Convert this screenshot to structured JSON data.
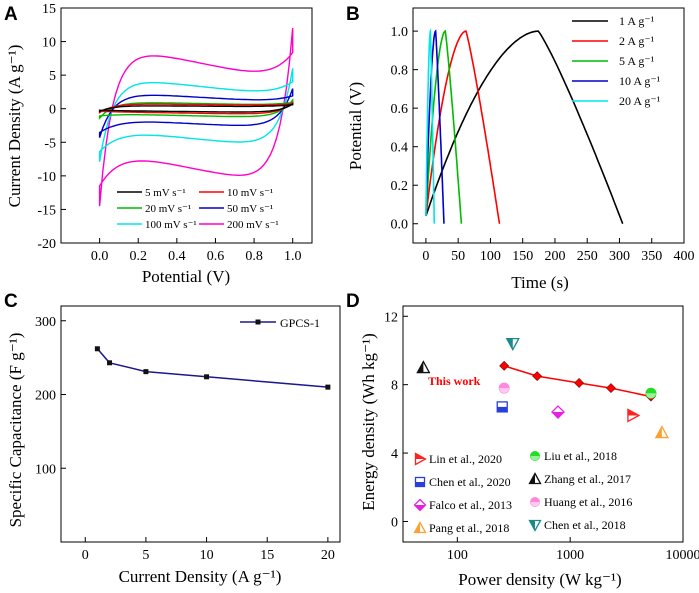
{
  "panels": {
    "A": {
      "letter": "A",
      "chart_data": {
        "type": "line",
        "title": "",
        "xlabel": "Potential (V)",
        "ylabel": "Current Density (A g⁻¹)",
        "xlim": [
          -0.2,
          1.1
        ],
        "ylim": [
          -20,
          15
        ],
        "xticks": [
          "0.0",
          "0.2",
          "0.4",
          "0.6",
          "0.8",
          "1.0"
        ],
        "xtick_values": [
          0.0,
          0.2,
          0.4,
          0.6,
          0.8,
          1.0
        ],
        "yticks": [
          "-20",
          "-15",
          "-10",
          "-5",
          "0",
          "5",
          "10",
          "15"
        ],
        "ytick_values": [
          -20,
          -15,
          -10,
          -5,
          0,
          5,
          10,
          15
        ],
        "series": [
          {
            "name": "5 mV s⁻¹",
            "color": "#000000",
            "start": -0.4,
            "end": 0.7,
            "top": 0.5,
            "bottom": -0.6
          },
          {
            "name": "10 mV s⁻¹",
            "color": "#ff0000",
            "start": -0.6,
            "end": 0.9,
            "top": 0.8,
            "bottom": -0.9
          },
          {
            "name": "20 mV s⁻¹",
            "color": "#00bb00",
            "start": -1.4,
            "end": 1.3,
            "top": 1.1,
            "bottom": -1.4
          },
          {
            "name": "50 mV s⁻¹",
            "color": "#0000cc",
            "start": -4.3,
            "end": 3.0,
            "top": 2.6,
            "bottom": -3.0
          },
          {
            "name": "100 mV s⁻¹",
            "color": "#00e5e5",
            "start": -7.9,
            "end": 6.0,
            "top": 5.0,
            "bottom": -6.0
          },
          {
            "name": "200 mV s⁻¹",
            "color": "#ff00cc",
            "start": -14.5,
            "end": 12.0,
            "top": 10.0,
            "bottom": -12.0
          }
        ],
        "legend": "bottom-right"
      }
    },
    "B": {
      "letter": "B",
      "chart_data": {
        "type": "line",
        "title": "",
        "xlabel": "Time (s)",
        "ylabel": "Potential (V)",
        "xlim": [
          -20,
          400
        ],
        "ylim": [
          -0.1,
          1.12
        ],
        "xticks": [
          "0",
          "50",
          "100",
          "150",
          "200",
          "250",
          "300",
          "350",
          "400"
        ],
        "xtick_values": [
          0,
          50,
          100,
          150,
          200,
          250,
          300,
          350,
          400
        ],
        "yticks": [
          "0.0",
          "0.2",
          "0.4",
          "0.6",
          "0.8",
          "1.0"
        ],
        "ytick_values": [
          0.0,
          0.2,
          0.4,
          0.6,
          0.8,
          1.0
        ],
        "series": [
          {
            "name": "1 A g⁻¹",
            "color": "#000000",
            "t_peak": 174,
            "t_end": 305
          },
          {
            "name": "2 A g⁻¹",
            "color": "#ff0000",
            "t_peak": 62,
            "t_end": 114
          },
          {
            "name": "5 A g⁻¹",
            "color": "#00bb00",
            "t_peak": 30,
            "t_end": 55
          },
          {
            "name": "10 A g⁻¹",
            "color": "#0000cc",
            "t_peak": 15,
            "t_end": 28
          },
          {
            "name": "20 A g⁻¹",
            "color": "#00e5e5",
            "t_peak": 7,
            "t_end": 13
          }
        ],
        "legend": "top-right"
      }
    },
    "C": {
      "letter": "C",
      "chart_data": {
        "type": "line",
        "title": "",
        "xlabel": "Current Density (A g⁻¹)",
        "ylabel": "Specific Capacitance (F g⁻¹)",
        "xlim": [
          -2,
          21
        ],
        "ylim": [
          0,
          320
        ],
        "xticks": [
          "0",
          "5",
          "10",
          "15",
          "20"
        ],
        "xtick_values": [
          0,
          5,
          10,
          15,
          20
        ],
        "yticks": [
          "100",
          "200",
          "300"
        ],
        "ytick_values": [
          100,
          200,
          300
        ],
        "series": [
          {
            "name": "GPCS-1",
            "color": "#1a1a8c",
            "x": [
              1,
              2,
              5,
              10,
              20
            ],
            "y": [
              262,
              243,
              231,
              224,
              210
            ]
          }
        ],
        "legend": "top-right"
      }
    },
    "D": {
      "letter": "D",
      "chart_data": {
        "type": "scatter",
        "title": "",
        "xlabel": "Power density (W kg⁻¹)",
        "ylabel": "Energy density (Wh kg⁻¹)",
        "xscale": "log",
        "xlim": [
          33,
          10000
        ],
        "ylim": [
          -1.2,
          12.6
        ],
        "xticks": [
          "100",
          "1000",
          "10000"
        ],
        "xtick_values": [
          100,
          1000,
          10000
        ],
        "yticks": [
          "0",
          "4",
          "8",
          "12"
        ],
        "ytick_values": [
          0,
          4,
          8,
          12
        ],
        "this_work": {
          "label": "This work",
          "color": "#ff0000",
          "x": [
            260,
            510,
            1200,
            2300,
            5200
          ],
          "y": [
            9.1,
            8.5,
            8.1,
            7.8,
            7.3
          ]
        },
        "series": [
          {
            "name": "Lin et al., 2020",
            "color": "#ff2020",
            "marker": "tri-right",
            "x": [
              3600
            ],
            "y": [
              6.2
            ]
          },
          {
            "name": "Liu et al., 2018",
            "color": "#22dd22",
            "marker": "circle",
            "x": [
              5200
            ],
            "y": [
              7.5
            ]
          },
          {
            "name": "Chen et al., 2020",
            "color": "#2a3fd8",
            "marker": "square",
            "x": [
              250
            ],
            "y": [
              6.7
            ]
          },
          {
            "name": "Zhang et al., 2017",
            "color": "#111111",
            "marker": "tri-up",
            "x": [
              50
            ],
            "y": [
              9.0
            ]
          },
          {
            "name": "Falco et al., 2013",
            "color": "#e61fe6",
            "marker": "diamond",
            "x": [
              780
            ],
            "y": [
              6.4
            ]
          },
          {
            "name": "Huang et al., 2016",
            "color": "#ff88dd",
            "marker": "circle",
            "x": [
              260
            ],
            "y": [
              7.8
            ]
          },
          {
            "name": "Pang et al., 2018",
            "color": "#ffa030",
            "marker": "tri-up",
            "x": [
              6500
            ],
            "y": [
              5.2
            ]
          },
          {
            "name": "Chen et al., 2018",
            "color": "#1a8a8a",
            "marker": "tri-down",
            "x": [
              310
            ],
            "y": [
              10.4
            ]
          }
        ],
        "legend": "bottom"
      }
    }
  }
}
